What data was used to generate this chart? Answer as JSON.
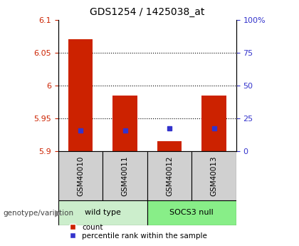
{
  "title": "GDS1254 / 1425038_at",
  "samples": [
    "GSM40010",
    "GSM40011",
    "GSM40012",
    "GSM40013"
  ],
  "group_labels": [
    "wild type",
    "SOCS3 null"
  ],
  "group_colors": [
    "#cceecc",
    "#88ee88"
  ],
  "bar_bottoms": [
    5.9,
    5.9,
    5.9,
    5.9
  ],
  "bar_tops": [
    6.07,
    5.985,
    5.915,
    5.985
  ],
  "blue_values": [
    5.932,
    5.932,
    5.935,
    5.935
  ],
  "ylim": [
    5.9,
    6.1
  ],
  "yticks_left": [
    5.9,
    5.95,
    6.0,
    6.05,
    6.1
  ],
  "yticks_right": [
    0,
    25,
    50,
    75,
    100
  ],
  "ytick_labels_left": [
    "5.9",
    "5.95",
    "6",
    "6.05",
    "6.1"
  ],
  "ytick_labels_right": [
    "0",
    "25",
    "50",
    "75",
    "100%"
  ],
  "grid_values": [
    5.95,
    6.0,
    6.05
  ],
  "bar_color": "#cc2200",
  "blue_color": "#3333cc",
  "bar_width": 0.55,
  "genotype_label": "genotype/variation",
  "legend_count": "count",
  "legend_percentile": "percentile rank within the sample",
  "left_tick_color": "#cc2200",
  "right_tick_color": "#3333cc",
  "sample_box_color": "#d0d0d0",
  "title_fontsize": 10
}
